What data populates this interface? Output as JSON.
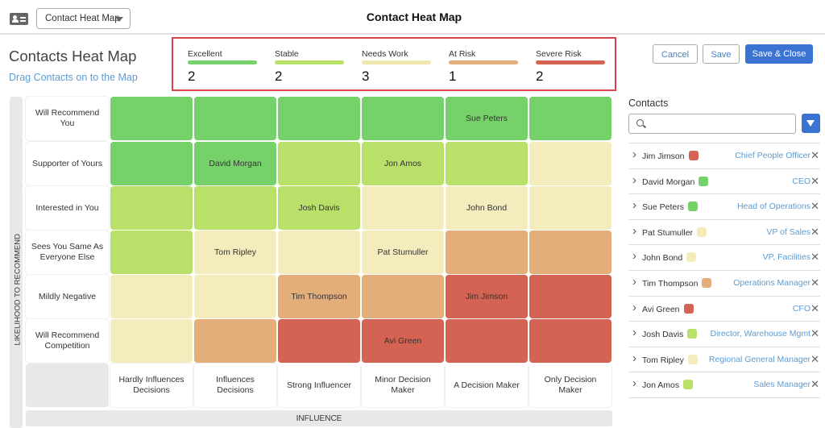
{
  "header": {
    "title": "Contact Heat Map",
    "dropdown_value": "Contact Heat Map",
    "icon": "contact-card-icon"
  },
  "page": {
    "title": "Contacts Heat Map",
    "subtitle_link": "Drag Contacts on to the Map"
  },
  "colors": {
    "excellent": "#77d16b",
    "stable": "#b9e068",
    "needs_work": "#f4ecbc",
    "at_risk": "#e4ae7b",
    "severe_risk": "#d46353",
    "primary": "#3b73d3",
    "link": "#5b9bd5"
  },
  "legend": [
    {
      "label": "Excellent",
      "count": "2",
      "color": "#77d16b"
    },
    {
      "label": "Stable",
      "count": "2",
      "color": "#b9e068"
    },
    {
      "label": "Needs Work",
      "count": "3",
      "color": "#f0e6b0"
    },
    {
      "label": "At Risk",
      "count": "1",
      "color": "#e4ae7b"
    },
    {
      "label": "Severe Risk",
      "count": "2",
      "color": "#d46353"
    }
  ],
  "buttons": {
    "cancel": "Cancel",
    "save": "Save",
    "save_close": "Save & Close"
  },
  "heatmap": {
    "y_axis_label": "LIKELIHOOD TO RECOMMEND",
    "x_axis_label": "INFLUENCE",
    "rows": [
      "Will Recommend You",
      "Supporter of Yours",
      "Interested in You",
      "Sees You Same As Everyone Else",
      "Mildly Negative",
      "Will Recommend Competition"
    ],
    "columns": [
      "Hardly Influences Decisions",
      "Influences Decisions",
      "Strong Influencer",
      "Minor Decision Maker",
      "A Decision Maker",
      "Only Decision Maker"
    ],
    "levels": [
      [
        "excellent",
        "excellent",
        "excellent",
        "excellent",
        "excellent",
        "excellent"
      ],
      [
        "excellent",
        "excellent",
        "stable",
        "stable",
        "stable",
        "needs_work"
      ],
      [
        "stable",
        "stable",
        "stable",
        "needs_work",
        "needs_work",
        "needs_work"
      ],
      [
        "stable",
        "needs_work",
        "needs_work",
        "needs_work",
        "at_risk",
        "at_risk"
      ],
      [
        "needs_work",
        "needs_work",
        "at_risk",
        "at_risk",
        "severe_risk",
        "severe_risk"
      ],
      [
        "needs_work",
        "at_risk",
        "severe_risk",
        "severe_risk",
        "severe_risk",
        "severe_risk"
      ]
    ],
    "placements": [
      [
        "",
        "",
        "",
        "",
        "Sue Peters",
        ""
      ],
      [
        "",
        "David Morgan",
        "",
        "Jon Amos",
        "",
        ""
      ],
      [
        "",
        "",
        "Josh Davis",
        "",
        "John Bond",
        ""
      ],
      [
        "",
        "Tom Ripley",
        "",
        "Pat Stumuller",
        "",
        ""
      ],
      [
        "",
        "",
        "Tim Thompson",
        "",
        "Jim Jimson",
        ""
      ],
      [
        "",
        "",
        "",
        "Avi Green",
        "",
        ""
      ]
    ]
  },
  "contacts": {
    "title": "Contacts",
    "search_placeholder": "",
    "items": [
      {
        "name": "Jim Jimson",
        "level": "severe_risk",
        "role": "Chief People Officer"
      },
      {
        "name": "David Morgan",
        "level": "excellent",
        "role": "CEO"
      },
      {
        "name": "Sue Peters",
        "level": "excellent",
        "role": "Head of Operations"
      },
      {
        "name": "Pat Stumuller",
        "level": "needs_work",
        "role": "VP of Sales"
      },
      {
        "name": "John Bond",
        "level": "needs_work",
        "role": "VP, Facilities"
      },
      {
        "name": "Tim Thompson",
        "level": "at_risk",
        "role": "Operations Manager"
      },
      {
        "name": "Avi Green",
        "level": "severe_risk",
        "role": "CFO"
      },
      {
        "name": "Josh Davis",
        "level": "stable",
        "role": "Director, Warehouse Mgmt"
      },
      {
        "name": "Tom Ripley",
        "level": "needs_work",
        "role": "Regional General Manager"
      },
      {
        "name": "Jon Amos",
        "level": "stable",
        "role": "Sales Manager"
      }
    ]
  }
}
